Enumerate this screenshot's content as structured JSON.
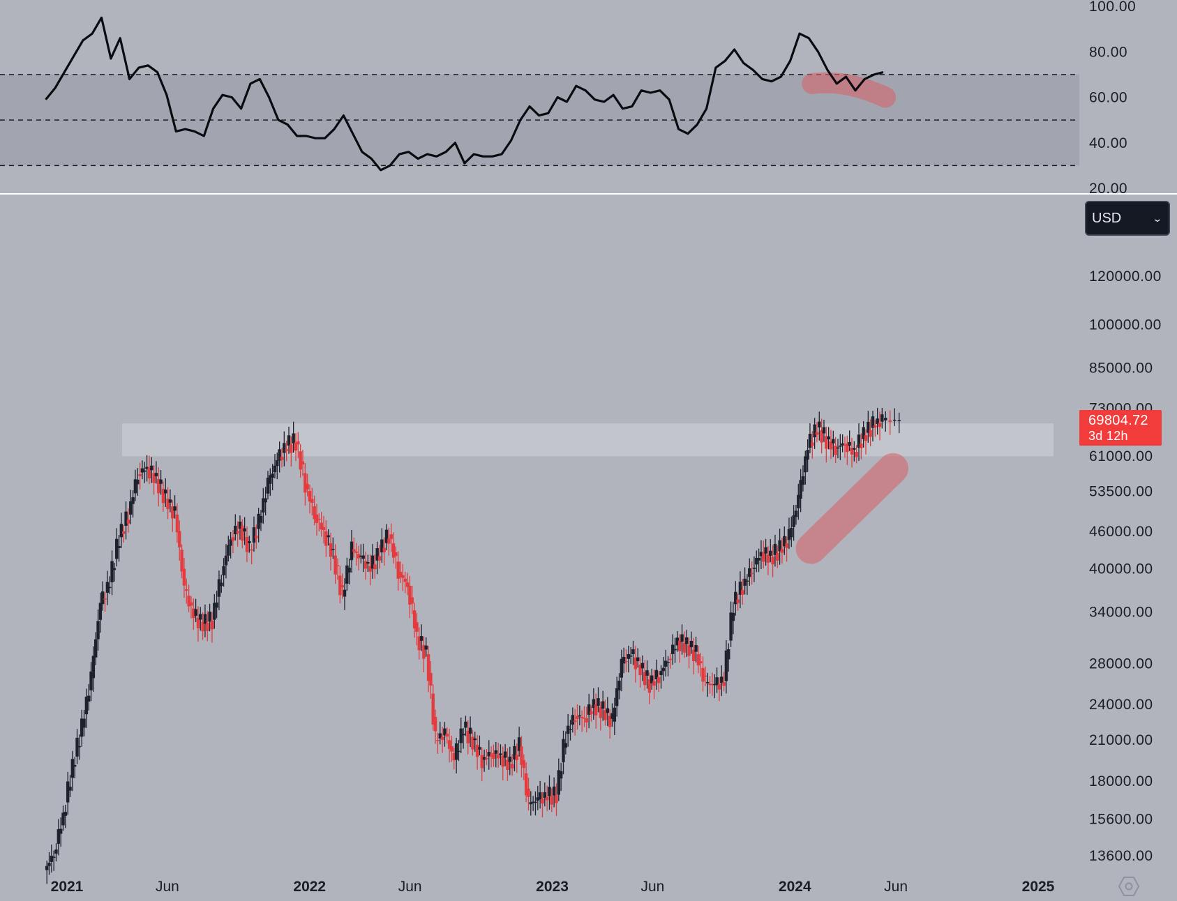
{
  "chart_data": [
    {
      "type": "line",
      "name": "rsi-panel",
      "y_ticks": [
        "100.00",
        "80.00",
        "60.00",
        "40.00",
        "20.00"
      ],
      "ylim": [
        20,
        100
      ],
      "band": [
        30,
        70
      ],
      "reference_lines": [
        70,
        50,
        30
      ],
      "annotation": "divergence-highlight",
      "x": [
        "2020-11-30",
        "2020-12-14",
        "2020-12-28",
        "2021-01-11",
        "2021-01-25",
        "2021-02-08",
        "2021-02-22",
        "2021-03-08",
        "2021-03-22",
        "2021-04-05",
        "2021-04-19",
        "2021-05-03",
        "2021-05-17",
        "2021-05-31",
        "2021-06-14",
        "2021-06-28",
        "2021-07-12",
        "2021-07-26",
        "2021-08-09",
        "2021-08-23",
        "2021-09-06",
        "2021-09-20",
        "2021-10-04",
        "2021-10-18",
        "2021-11-01",
        "2021-11-15",
        "2021-11-29",
        "2021-12-13",
        "2021-12-27",
        "2022-01-10",
        "2022-01-24",
        "2022-02-07",
        "2022-02-21",
        "2022-03-07",
        "2022-03-21",
        "2022-04-04",
        "2022-04-18",
        "2022-05-02",
        "2022-05-16",
        "2022-05-30",
        "2022-06-13",
        "2022-06-27",
        "2022-07-11",
        "2022-07-25",
        "2022-08-08",
        "2022-08-22",
        "2022-09-05",
        "2022-09-19",
        "2022-10-03",
        "2022-10-17",
        "2022-10-31",
        "2022-11-14",
        "2022-11-28",
        "2022-12-12",
        "2022-12-26",
        "2023-01-09",
        "2023-01-23",
        "2023-02-06",
        "2023-02-20",
        "2023-03-06",
        "2023-03-20",
        "2023-04-03",
        "2023-04-17",
        "2023-05-01",
        "2023-05-15",
        "2023-05-29",
        "2023-06-12",
        "2023-06-26",
        "2023-07-10",
        "2023-07-24",
        "2023-08-07",
        "2023-08-21",
        "2023-09-04",
        "2023-09-18",
        "2023-10-02",
        "2023-10-16",
        "2023-10-30",
        "2023-11-13",
        "2023-11-27",
        "2023-12-11",
        "2023-12-25",
        "2024-01-08",
        "2024-01-22",
        "2024-02-05",
        "2024-02-19",
        "2024-03-04",
        "2024-03-18",
        "2024-04-01",
        "2024-04-15",
        "2024-04-29",
        "2024-05-13"
      ],
      "y": [
        59,
        64,
        71,
        78,
        85,
        88,
        95,
        77,
        86,
        68,
        73,
        74,
        71,
        61,
        45,
        46,
        45,
        43,
        55,
        61,
        60,
        55,
        66,
        68,
        60,
        50,
        48,
        43,
        43,
        42,
        42,
        46,
        52,
        44,
        36,
        33,
        28,
        30,
        35,
        36,
        33,
        35,
        34,
        36,
        40,
        31,
        35,
        34,
        34,
        35,
        41,
        50,
        56,
        52,
        53,
        60,
        58,
        65,
        63,
        59,
        58,
        61,
        55,
        56,
        63,
        62,
        63,
        59,
        46,
        44,
        48,
        55,
        73,
        76,
        81,
        75,
        72,
        68,
        67,
        69,
        76,
        88,
        86,
        80,
        72,
        66,
        69,
        63,
        68,
        70,
        71
      ]
    },
    {
      "type": "candlestick",
      "name": "price-panel",
      "y_ticks": [
        "120000.00",
        "100000.00",
        "85000.00",
        "73000.00",
        "61000.00",
        "53500.00",
        "46000.00",
        "40000.00",
        "34000.00",
        "28000.00",
        "24000.00",
        "21000.00",
        "18000.00",
        "15600.00",
        "13600.00"
      ],
      "yscale": "log",
      "ylim": [
        12900,
        150000
      ],
      "x_ticks": [
        {
          "label": "2021",
          "date": "2021-01-01",
          "bold": true
        },
        {
          "label": "Jun",
          "date": "2021-06-01",
          "bold": false
        },
        {
          "label": "2022",
          "date": "2022-01-01",
          "bold": true
        },
        {
          "label": "Jun",
          "date": "2022-06-01",
          "bold": false
        },
        {
          "label": "2023",
          "date": "2023-01-01",
          "bold": true
        },
        {
          "label": "Jun",
          "date": "2023-06-01",
          "bold": false
        },
        {
          "label": "2024",
          "date": "2024-01-01",
          "bold": true
        },
        {
          "label": "Jun",
          "date": "2024-06-01",
          "bold": false
        },
        {
          "label": "2025",
          "date": "2025-01-01",
          "bold": true
        }
      ],
      "resistance_zone": [
        61000,
        69000
      ],
      "annotation": "trend-highlight",
      "last_price": "69804.72",
      "countdown": "3d 12h",
      "currency": "USD",
      "x": [
        "2020-11-30",
        "2020-12-14",
        "2020-12-28",
        "2021-01-11",
        "2021-01-25",
        "2021-02-08",
        "2021-02-22",
        "2021-03-08",
        "2021-03-22",
        "2021-04-05",
        "2021-04-19",
        "2021-05-03",
        "2021-05-17",
        "2021-05-31",
        "2021-06-14",
        "2021-06-28",
        "2021-07-12",
        "2021-07-26",
        "2021-08-09",
        "2021-08-23",
        "2021-09-06",
        "2021-09-20",
        "2021-10-04",
        "2021-10-18",
        "2021-11-01",
        "2021-11-15",
        "2021-11-29",
        "2021-12-13",
        "2021-12-27",
        "2022-01-10",
        "2022-01-24",
        "2022-02-07",
        "2022-02-21",
        "2022-03-07",
        "2022-03-21",
        "2022-04-04",
        "2022-04-18",
        "2022-05-02",
        "2022-05-16",
        "2022-05-30",
        "2022-06-13",
        "2022-06-27",
        "2022-07-11",
        "2022-07-25",
        "2022-08-08",
        "2022-08-22",
        "2022-09-05",
        "2022-09-19",
        "2022-10-03",
        "2022-10-17",
        "2022-10-31",
        "2022-11-14",
        "2022-11-28",
        "2022-12-12",
        "2022-12-26",
        "2023-01-09",
        "2023-01-23",
        "2023-02-06",
        "2023-02-20",
        "2023-03-06",
        "2023-03-20",
        "2023-04-03",
        "2023-04-17",
        "2023-05-01",
        "2023-05-15",
        "2023-05-29",
        "2023-06-12",
        "2023-06-26",
        "2023-07-10",
        "2023-07-24",
        "2023-08-07",
        "2023-08-21",
        "2023-09-04",
        "2023-09-18",
        "2023-10-02",
        "2023-10-16",
        "2023-10-30",
        "2023-11-13",
        "2023-11-27",
        "2023-12-11",
        "2023-12-25",
        "2024-01-08",
        "2024-01-22",
        "2024-02-05",
        "2024-02-19",
        "2024-03-04",
        "2024-03-18",
        "2024-04-01",
        "2024-04-15",
        "2024-04-29",
        "2024-05-13"
      ],
      "close": [
        13700,
        15800,
        19000,
        22000,
        26500,
        35000,
        38000,
        45000,
        49000,
        57000,
        58500,
        56000,
        52000,
        49000,
        37000,
        33500,
        32500,
        33000,
        39000,
        45000,
        47000,
        43000,
        47500,
        55000,
        60000,
        63500,
        64500,
        55000,
        49000,
        46000,
        42000,
        36000,
        43000,
        41500,
        40000,
        42500,
        45500,
        39500,
        37500,
        31000,
        29000,
        21000,
        21500,
        19500,
        22000,
        21000,
        19500,
        20000,
        19800,
        19200,
        20500,
        16500,
        16800,
        17000,
        17100,
        21500,
        23000,
        22800,
        24000,
        23500,
        22500,
        28000,
        29000,
        27500,
        26000,
        26800,
        28500,
        30500,
        30000,
        29000,
        26000,
        25800,
        26200,
        35000,
        37500,
        40000,
        42500,
        41800,
        43000,
        45000,
        52000,
        63000,
        68000,
        65000,
        63000,
        64000,
        62000,
        66000,
        68500,
        69804,
        69804
      ]
    }
  ]
}
